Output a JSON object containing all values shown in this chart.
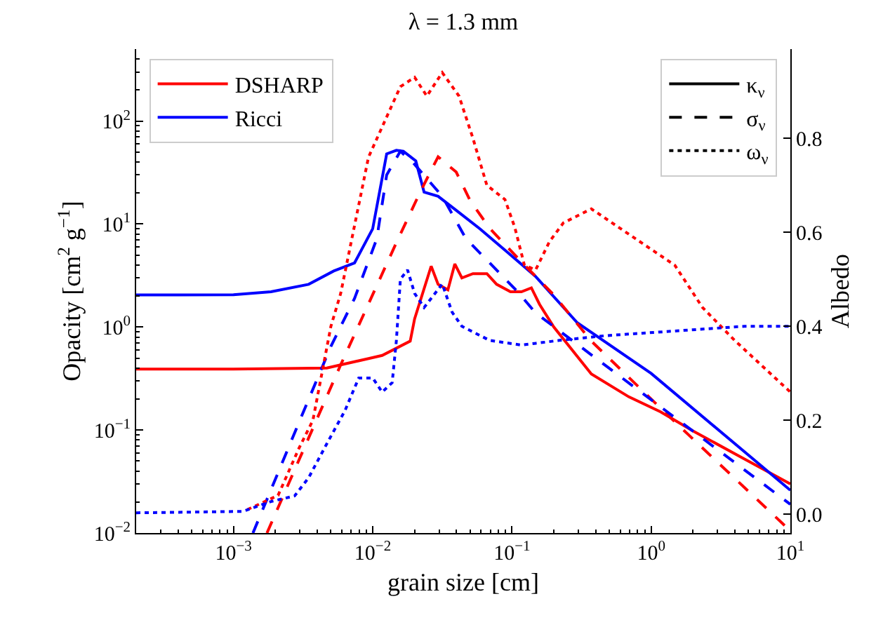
{
  "chart_data": {
    "type": "line",
    "title": "λ = 1.3 mm",
    "xlabel": "grain size [cm]",
    "ylabel": "Opacity [cm$^{2}$ g$^{−1}$]",
    "y2label": "Albedo",
    "log": "xy",
    "legend": "top left",
    "marker": "none",
    "xlim": [
      0.0002,
      10
    ],
    "xticks": [
      {
        "value": 0.001,
        "label": "10$^{−3}$"
      },
      {
        "value": 0.01,
        "label": "10$^{−2}$"
      },
      {
        "value": 0.1,
        "label": "10$^{−1}$"
      },
      {
        "value": 1,
        "label": "10$^{0}$"
      },
      {
        "value": 10,
        "label": "10$^{1}$"
      }
    ],
    "ylim": [
      0.01,
      500
    ],
    "yticks": [
      {
        "value": 0.01,
        "label": "10$^{−2}$"
      },
      {
        "value": 0.1,
        "label": "10$^{−1}$"
      },
      {
        "value": 1,
        "label": "10$^{0}$"
      },
      {
        "value": 10,
        "label": "10$^{1}$"
      },
      {
        "value": 100,
        "label": "10$^{2}$"
      }
    ],
    "y2lim": [
      -0.04,
      0.99
    ],
    "y2ticks": [
      {
        "value": 0,
        "label": "0.0"
      },
      {
        "value": 0.2,
        "label": "0.2"
      },
      {
        "value": 0.4,
        "label": "0.4"
      },
      {
        "value": 0.6,
        "label": "0.6"
      },
      {
        "value": 0.8,
        "label": "0.8"
      }
    ],
    "series": [
      {
        "name": "DSHARP",
        "color": "#ff0000",
        "line_style": "solid",
        "x": [
          0.0002,
          0.001,
          0.00468,
          0.0117,
          0.0186,
          0.02,
          0.0263,
          0.0295,
          0.0347,
          0.0389,
          0.0437,
          0.0525,
          0.0661,
          0.0776,
          0.0977,
          0.117,
          0.138,
          0.158,
          0.2,
          0.372,
          0.692,
          1.17,
          2.0,
          4.37,
          10
        ],
        "values": [
          0.39,
          0.39,
          0.4,
          0.53,
          0.73,
          1.2,
          3.9,
          2.6,
          2.3,
          4.1,
          3.0,
          3.3,
          3.3,
          2.6,
          2.2,
          2.2,
          2.4,
          1.66,
          1.0,
          0.35,
          0.21,
          0.15,
          0.098,
          0.055,
          0.03
        ]
      },
      {
        "name": "Ricci",
        "color": "#0000ff",
        "line_style": "solid",
        "x": [
          0.0002,
          0.001,
          0.00186,
          0.00347,
          0.00525,
          0.00741,
          0.01,
          0.0126,
          0.0148,
          0.0166,
          0.0204,
          0.0234,
          0.0295,
          0.0398,
          0.0589,
          0.0933,
          0.148,
          0.295,
          1,
          10
        ],
        "values": [
          2.05,
          2.06,
          2.2,
          2.6,
          3.5,
          4.2,
          9.0,
          48,
          52,
          51,
          41,
          20.4,
          18.6,
          13.6,
          9.0,
          5.3,
          3.1,
          1.1,
          0.355,
          0.026
        ]
      },
      {
        "color": "#ff0000",
        "line_style": "dashed",
        "x": [
          0.00174,
          0.00589,
          0.0148,
          0.0219,
          0.0295,
          0.0398,
          0.05,
          0.0692,
          0.117,
          0.2,
          0.372,
          1.48,
          10
        ],
        "values": [
          0.01,
          0.43,
          6.6,
          20.4,
          45,
          32,
          17,
          9.1,
          4.3,
          2.05,
          0.73,
          0.12,
          0.0105
        ]
      },
      {
        "color": "#0000ff",
        "line_style": "dashed",
        "x": [
          0.00138,
          0.00295,
          0.00501,
          0.00741,
          0.0107,
          0.0126,
          0.0158,
          0.02,
          0.0316,
          0.0468,
          0.0692,
          0.11,
          0.148,
          10
        ],
        "values": [
          0.01,
          0.118,
          0.65,
          1.9,
          7.2,
          30,
          51,
          38,
          18.6,
          7.2,
          4.2,
          2.2,
          1.37,
          0.019
        ]
      },
      {
        "color": "#ff0000",
        "line_style": "dotted",
        "axis": "y2",
        "x": [
          0.00126,
          0.00209,
          0.00295,
          0.00372,
          0.00501,
          0.00589,
          0.00933,
          0.0158,
          0.02,
          0.0245,
          0.0316,
          0.0417,
          0.0525,
          0.0661,
          0.0891,
          0.105,
          0.123,
          0.148,
          0.186,
          0.234,
          0.372,
          0.741,
          1.48,
          2.34,
          3.98,
          10
        ],
        "values": [
          0.01,
          0.04,
          0.14,
          0.2,
          0.4,
          0.47,
          0.76,
          0.91,
          0.93,
          0.89,
          0.94,
          0.89,
          0.8,
          0.7,
          0.67,
          0.61,
          0.53,
          0.52,
          0.58,
          0.62,
          0.65,
          0.59,
          0.53,
          0.44,
          0.37,
          0.26
        ]
      },
      {
        "color": "#0000ff",
        "line_style": "dotted",
        "axis": "y2",
        "x": [
          0.0002,
          0.00117,
          0.00186,
          0.00275,
          0.00347,
          0.00468,
          0.00631,
          0.00794,
          0.01,
          0.0117,
          0.0138,
          0.0148,
          0.0158,
          0.0178,
          0.02,
          0.0234,
          0.0316,
          0.0372,
          0.0437,
          0.0692,
          0.117,
          0.219,
          0.468,
          1.48,
          4.68,
          10
        ],
        "values": [
          0.003,
          0.006,
          0.027,
          0.039,
          0.078,
          0.15,
          0.22,
          0.29,
          0.29,
          0.26,
          0.28,
          0.37,
          0.5,
          0.52,
          0.47,
          0.44,
          0.49,
          0.43,
          0.4,
          0.37,
          0.36,
          0.37,
          0.38,
          0.39,
          0.4,
          0.4
        ]
      },
      {
        "name": "κ$_{ν}$",
        "color": "#000000",
        "line_style": "solid"
      },
      {
        "name": "σ$_{ν}$",
        "color": "#000000",
        "line_style": "dashed"
      },
      {
        "name": "ω$_{ν}$",
        "color": "#000000",
        "line_style": "dotted"
      }
    ]
  }
}
